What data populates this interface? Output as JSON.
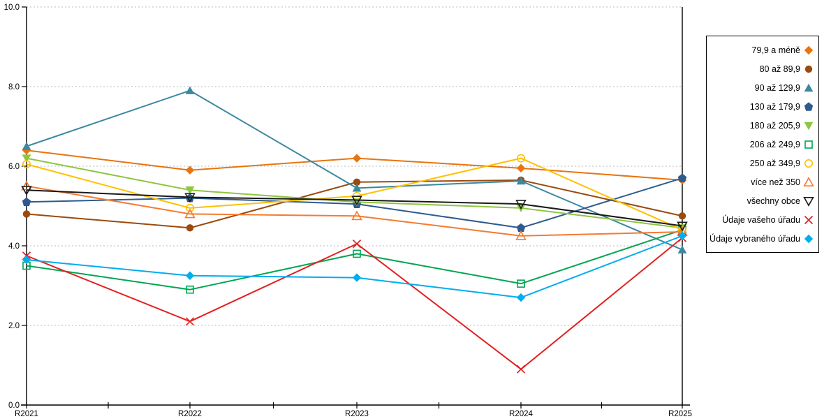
{
  "chart_data": {
    "type": "line",
    "title": "",
    "xlabel": "",
    "ylabel": "",
    "x_categories": [
      "R2021",
      "R2022",
      "R2023",
      "R2024",
      "R2025"
    ],
    "ylim": [
      0,
      10
    ],
    "y_tick_labels": [
      "0.0",
      "2.0",
      "4.0",
      "6.0",
      "8.0",
      "10.0"
    ],
    "y_tick_values": [
      0,
      2,
      4,
      6,
      8,
      10
    ],
    "grid": "horizontal-dashed",
    "legend_position": "right-outside",
    "series": [
      {
        "name": "79,9 a méně",
        "marker": "diamond",
        "fill": "filled",
        "color": "#e8740e",
        "values": [
          6.4,
          5.9,
          6.2,
          5.95,
          5.65
        ]
      },
      {
        "name": "80 až 89,9",
        "marker": "circle",
        "fill": "filled",
        "color": "#9a4b0f",
        "values": [
          4.8,
          4.45,
          5.6,
          5.65,
          4.75
        ]
      },
      {
        "name": "90 až 129,9",
        "marker": "triangle-up",
        "fill": "filled",
        "color": "#3b88a0",
        "values": [
          6.5,
          7.9,
          5.45,
          5.63,
          3.9
        ]
      },
      {
        "name": "130 až 179,9",
        "marker": "pentagon",
        "fill": "filled",
        "color": "#2e5b8f",
        "values": [
          5.1,
          5.2,
          5.05,
          4.45,
          5.7
        ]
      },
      {
        "name": "180 až 205,9",
        "marker": "triangle-down",
        "fill": "filled",
        "color": "#8dc63f",
        "values": [
          6.2,
          5.4,
          5.1,
          4.95,
          4.45
        ]
      },
      {
        "name": "206 až 249,9",
        "marker": "square",
        "fill": "hollow",
        "color": "#00a651",
        "values": [
          3.5,
          2.9,
          3.8,
          3.05,
          4.4
        ]
      },
      {
        "name": "250 až 349,9",
        "marker": "circle",
        "fill": "hollow",
        "color": "#ffc000",
        "values": [
          6.05,
          4.95,
          5.25,
          6.2,
          4.4
        ]
      },
      {
        "name": "více než 350",
        "marker": "triangle-up",
        "fill": "hollow",
        "color": "#f47b30",
        "values": [
          5.5,
          4.8,
          4.75,
          4.25,
          4.35
        ]
      },
      {
        "name": "všechny obce",
        "marker": "triangle-down",
        "fill": "hollow",
        "color": "#1a1a1a",
        "values": [
          5.4,
          5.22,
          5.15,
          5.05,
          4.5
        ]
      },
      {
        "name": "Údaje vašeho úřadu",
        "marker": "x",
        "fill": "stroke",
        "color": "#e32020",
        "values": [
          3.75,
          2.1,
          4.05,
          0.9,
          4.2
        ]
      },
      {
        "name": "Údaje vybraného úřadu",
        "marker": "diamond",
        "fill": "filled",
        "color": "#00adee",
        "values": [
          3.65,
          3.25,
          3.2,
          2.7,
          4.25
        ]
      }
    ]
  }
}
